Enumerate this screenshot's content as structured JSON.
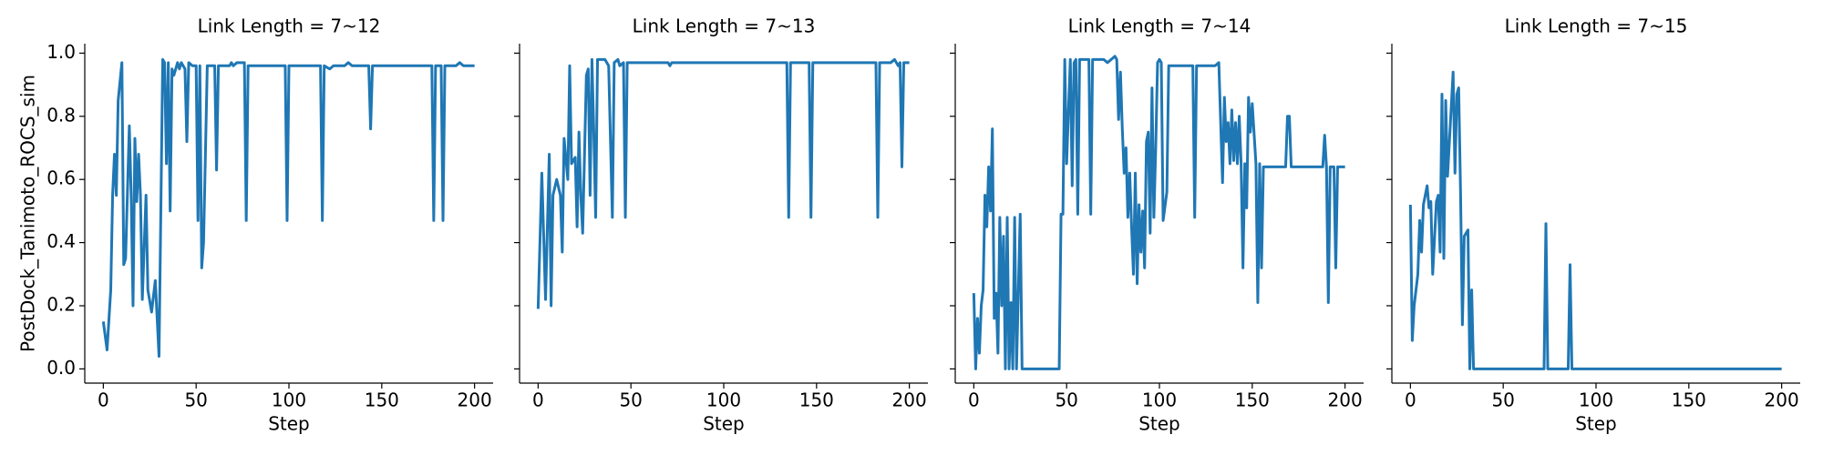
{
  "chart_data": [
    {
      "type": "line",
      "title": "Link Length = 7~12",
      "xlabel": "Step",
      "ylabel": "PostDock_Tanimoto_ROCS_sim",
      "xlim": [
        -10,
        210
      ],
      "ylim": [
        -0.045,
        1.03
      ],
      "xticks": [
        0,
        50,
        100,
        150,
        200
      ],
      "yticks": [
        {
          "value": 0,
          "label": "0.0"
        },
        0.2,
        0.4,
        0.6,
        0.8,
        {
          "value": 1,
          "label": "1.0"
        }
      ],
      "ytick_labels": true,
      "x": [
        0,
        2,
        4,
        5,
        6,
        7,
        8,
        10,
        11,
        12,
        14,
        15,
        16,
        17,
        18,
        19,
        20,
        21,
        23,
        24,
        26,
        28,
        30,
        32,
        33,
        34,
        35,
        36,
        37,
        38,
        40,
        41,
        42,
        44,
        45,
        46,
        48,
        50,
        51,
        52,
        53,
        54,
        56,
        60,
        61,
        62,
        68,
        69,
        70,
        72,
        76,
        77,
        78,
        98,
        99,
        100,
        117,
        118,
        119,
        122,
        124,
        130,
        132,
        134,
        143,
        144,
        145,
        177,
        178,
        179,
        182,
        183,
        184,
        190,
        192,
        194,
        200
      ],
      "series": [
        {
          "color": "#1f77b4",
          "values": [
            0.15,
            0.06,
            0.25,
            0.55,
            0.68,
            0.55,
            0.85,
            0.97,
            0.33,
            0.35,
            0.77,
            0.55,
            0.2,
            0.73,
            0.53,
            0.68,
            0.55,
            0.22,
            0.55,
            0.25,
            0.18,
            0.28,
            0.04,
            0.98,
            0.97,
            0.65,
            0.97,
            0.5,
            0.95,
            0.93,
            0.97,
            0.95,
            0.97,
            0.95,
            0.72,
            0.97,
            0.96,
            0.96,
            0.47,
            0.96,
            0.32,
            0.4,
            0.96,
            0.96,
            0.63,
            0.96,
            0.96,
            0.97,
            0.96,
            0.97,
            0.97,
            0.47,
            0.96,
            0.96,
            0.47,
            0.96,
            0.96,
            0.47,
            0.96,
            0.95,
            0.96,
            0.96,
            0.97,
            0.96,
            0.96,
            0.76,
            0.96,
            0.96,
            0.47,
            0.96,
            0.96,
            0.47,
            0.96,
            0.96,
            0.97,
            0.96,
            0.96
          ]
        }
      ]
    },
    {
      "type": "line",
      "title": "Link Length = 7~13",
      "xlabel": "Step",
      "xlim": [
        -10,
        210
      ],
      "ylim": [
        -0.045,
        1.03
      ],
      "xticks": [
        0,
        50,
        100,
        150,
        200
      ],
      "yticks": [
        0,
        0.2,
        0.4,
        0.6,
        0.8,
        1
      ],
      "ytick_labels": false,
      "x": [
        0,
        2,
        4,
        6,
        7,
        8,
        10,
        12,
        13,
        14,
        16,
        17,
        18,
        20,
        21,
        22,
        23,
        24,
        26,
        27,
        28,
        29,
        30,
        31,
        32,
        34,
        36,
        38,
        40,
        41,
        43,
        44,
        46,
        47,
        48,
        70,
        71,
        72,
        134,
        135,
        136,
        146,
        147,
        148,
        160,
        174,
        176,
        182,
        183,
        184,
        190,
        192,
        194,
        195,
        196,
        197,
        200
      ],
      "series": [
        {
          "color": "#1f77b4",
          "values": [
            0.19,
            0.62,
            0.22,
            0.68,
            0.2,
            0.55,
            0.6,
            0.55,
            0.37,
            0.73,
            0.6,
            0.96,
            0.65,
            0.67,
            0.45,
            0.75,
            0.55,
            0.43,
            0.93,
            0.95,
            0.55,
            0.98,
            0.75,
            0.48,
            0.98,
            0.98,
            0.98,
            0.96,
            0.48,
            0.97,
            0.98,
            0.96,
            0.97,
            0.48,
            0.97,
            0.97,
            0.96,
            0.97,
            0.97,
            0.48,
            0.97,
            0.97,
            0.48,
            0.97,
            0.97,
            0.97,
            0.97,
            0.97,
            0.48,
            0.97,
            0.97,
            0.98,
            0.96,
            0.97,
            0.64,
            0.97,
            0.97
          ]
        }
      ]
    },
    {
      "type": "line",
      "title": "Link Length = 7~14",
      "xlabel": "Step",
      "xlim": [
        -10,
        210
      ],
      "ylim": [
        -0.045,
        1.03
      ],
      "xticks": [
        0,
        50,
        100,
        150,
        200
      ],
      "yticks": [
        0,
        0.2,
        0.4,
        0.6,
        0.8,
        1
      ],
      "ytick_labels": false,
      "x": [
        0,
        1,
        2,
        3,
        4,
        5,
        6,
        7,
        8,
        9,
        10,
        11,
        12,
        13,
        14,
        15,
        16,
        17,
        18,
        19,
        20,
        21,
        22,
        23,
        25,
        26,
        46,
        47,
        48,
        49,
        50,
        52,
        53,
        54,
        55,
        56,
        57,
        62,
        63,
        64,
        70,
        72,
        74,
        76,
        77,
        78,
        79,
        80,
        81,
        82,
        83,
        84,
        85,
        86,
        87,
        88,
        89,
        90,
        91,
        92,
        93,
        94,
        95,
        96,
        97,
        98,
        99,
        100,
        101,
        102,
        104,
        105,
        118,
        119,
        120,
        130,
        132,
        134,
        135,
        136,
        137,
        138,
        139,
        140,
        141,
        142,
        143,
        144,
        145,
        146,
        147,
        148,
        149,
        150,
        152,
        153,
        154,
        155,
        156,
        168,
        169,
        170,
        171,
        188,
        189,
        190,
        191,
        192,
        194,
        195,
        196,
        200
      ],
      "series": [
        {
          "color": "#1f77b4",
          "values": [
            0.24,
            0.0,
            0.16,
            0.05,
            0.2,
            0.25,
            0.55,
            0.45,
            0.64,
            0.5,
            0.76,
            0.16,
            0.24,
            0.05,
            0.48,
            0.2,
            0.42,
            0.0,
            0.48,
            0.0,
            0.21,
            0.0,
            0.48,
            0.0,
            0.49,
            0.0,
            0.0,
            0.49,
            0.49,
            0.98,
            0.65,
            0.98,
            0.58,
            0.97,
            0.98,
            0.49,
            0.98,
            0.98,
            0.49,
            0.98,
            0.98,
            0.97,
            0.98,
            0.99,
            0.98,
            0.79,
            0.94,
            0.76,
            0.62,
            0.7,
            0.48,
            0.62,
            0.45,
            0.3,
            0.62,
            0.27,
            0.52,
            0.37,
            0.5,
            0.32,
            0.72,
            0.75,
            0.43,
            0.89,
            0.48,
            0.7,
            0.97,
            0.98,
            0.97,
            0.47,
            0.56,
            0.96,
            0.96,
            0.48,
            0.96,
            0.96,
            0.97,
            0.59,
            0.86,
            0.72,
            0.78,
            0.65,
            0.82,
            0.66,
            0.78,
            0.65,
            0.8,
            0.65,
            0.32,
            0.65,
            0.51,
            0.86,
            0.75,
            0.84,
            0.65,
            0.21,
            0.65,
            0.32,
            0.64,
            0.64,
            0.8,
            0.8,
            0.64,
            0.64,
            0.74,
            0.64,
            0.21,
            0.64,
            0.64,
            0.32,
            0.64,
            0.64
          ]
        }
      ]
    },
    {
      "type": "line",
      "title": "Link Length = 7~15",
      "xlabel": "Step",
      "xlim": [
        -10,
        210
      ],
      "ylim": [
        -0.045,
        1.03
      ],
      "xticks": [
        0,
        50,
        100,
        150,
        200
      ],
      "yticks": [
        0,
        0.2,
        0.4,
        0.6,
        0.8,
        1
      ],
      "ytick_labels": false,
      "x": [
        0,
        1,
        2,
        4,
        5,
        6,
        7,
        9,
        10,
        11,
        12,
        14,
        15,
        16,
        17,
        18,
        19,
        20,
        21,
        22,
        23,
        24,
        25,
        26,
        27,
        28,
        29,
        30,
        31,
        32,
        33,
        34,
        72,
        73,
        74,
        85,
        86,
        87,
        200
      ],
      "series": [
        {
          "color": "#1f77b4",
          "values": [
            0.52,
            0.09,
            0.2,
            0.3,
            0.47,
            0.37,
            0.52,
            0.58,
            0.51,
            0.53,
            0.3,
            0.53,
            0.55,
            0.37,
            0.87,
            0.35,
            0.85,
            0.61,
            0.72,
            0.83,
            0.94,
            0.62,
            0.87,
            0.89,
            0.56,
            0.14,
            0.42,
            0.43,
            0.44,
            0.0,
            0.25,
            0.0,
            0.0,
            0.46,
            0.0,
            0.0,
            0.33,
            0.0,
            0.0
          ]
        }
      ]
    }
  ]
}
